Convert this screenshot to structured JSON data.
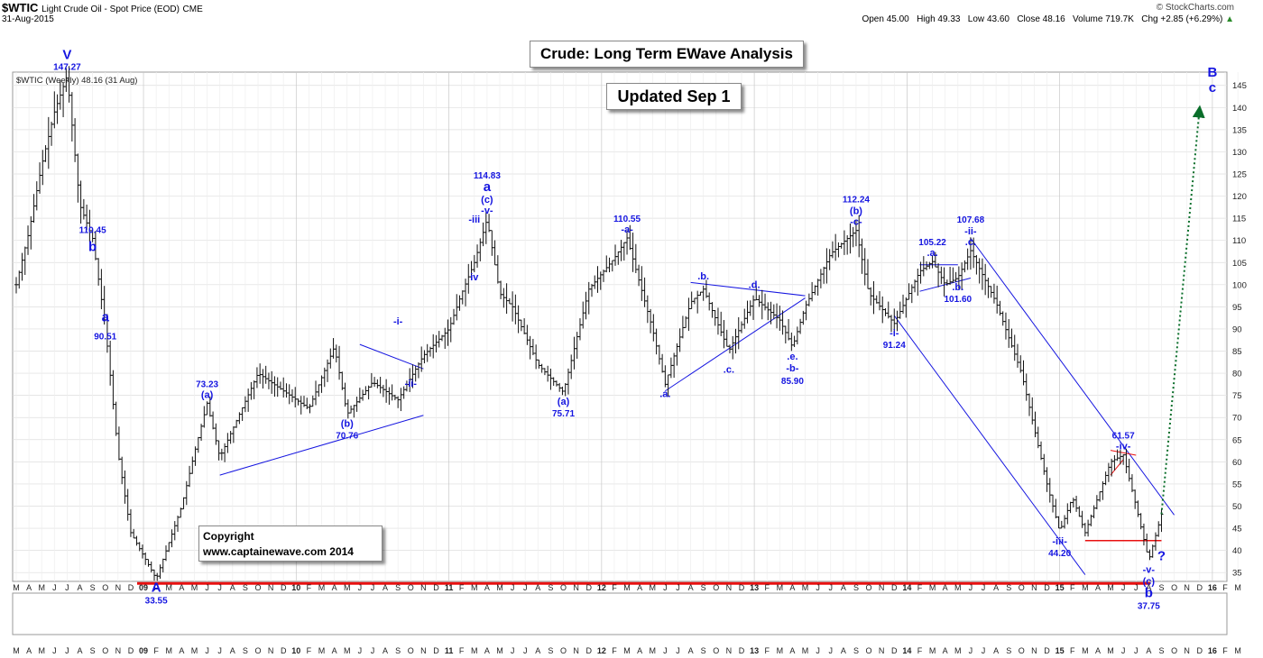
{
  "header": {
    "ticker": "$WTIC",
    "name": "Light Crude Oil - Spot Price (EOD)",
    "exchange": "CME",
    "date": "31-Aug-2015",
    "brand": "© StockCharts.com",
    "stats": [
      {
        "label": "Open",
        "value": "45.00"
      },
      {
        "label": "High",
        "value": "49.33"
      },
      {
        "label": "Low",
        "value": "43.60"
      },
      {
        "label": "Close",
        "value": "48.16"
      },
      {
        "label": "Volume",
        "value": "719.7K"
      }
    ],
    "chg_label": "Chg",
    "chg_value": "+2.85 (+6.29%)",
    "chg_arrow": "▲",
    "legend": "$WTIC (Weekly) 48.16 (31 Aug)"
  },
  "title_box": "Crude: Long Term EWave Analysis",
  "updated_box": "Updated Sep 1",
  "copyright": {
    "line1": "Copyright",
    "line2": "www.captainewave.com 2014"
  },
  "colors": {
    "wave": "#1515e0",
    "support": "#e81010",
    "projection": "#0a6e2a",
    "bars": "#111111",
    "grid": "#dddddd"
  },
  "chart_data": {
    "type": "ohlc",
    "title": "Crude: Long Term EWave Analysis",
    "period": "weekly",
    "ylim": [
      33,
      148
    ],
    "y_ticks": [
      35,
      40,
      45,
      50,
      55,
      60,
      65,
      70,
      75,
      80,
      85,
      90,
      95,
      100,
      105,
      110,
      115,
      120,
      125,
      130,
      135,
      140,
      145
    ],
    "x_start": "2008-03",
    "x_months": [
      "M",
      "A",
      "M",
      "J",
      "J",
      "A",
      "S",
      "O",
      "N",
      "D",
      "09",
      "F",
      "M",
      "A",
      "M",
      "J",
      "J",
      "A",
      "S",
      "O",
      "N",
      "D",
      "10",
      "F",
      "M",
      "A",
      "M",
      "J",
      "J",
      "A",
      "S",
      "O",
      "N",
      "D",
      "11",
      "F",
      "M",
      "A",
      "M",
      "J",
      "J",
      "A",
      "S",
      "O",
      "N",
      "D",
      "12",
      "F",
      "M",
      "A",
      "M",
      "J",
      "J",
      "A",
      "S",
      "O",
      "N",
      "D",
      "13",
      "F",
      "M",
      "A",
      "M",
      "J",
      "J",
      "A",
      "S",
      "O",
      "N",
      "D",
      "14",
      "F",
      "M",
      "A",
      "M",
      "J",
      "J",
      "A",
      "S",
      "O",
      "N",
      "D",
      "15",
      "F",
      "M",
      "A",
      "M",
      "J",
      "J",
      "A",
      "S",
      "O",
      "N",
      "D",
      "16",
      "F",
      "M"
    ],
    "price_path": [
      [
        "2008-03",
        100
      ],
      [
        "2008-04",
        112
      ],
      [
        "2008-05",
        127
      ],
      [
        "2008-06",
        139
      ],
      [
        "2008-07",
        147.27
      ],
      [
        "2008-08",
        118
      ],
      [
        "2008-09",
        110.45
      ],
      [
        "2008-10",
        90.51
      ],
      [
        "2008-11",
        62
      ],
      [
        "2008-12",
        44
      ],
      [
        "2009-02",
        33.55
      ],
      [
        "2009-04",
        50
      ],
      [
        "2009-05",
        62
      ],
      [
        "2009-06",
        73.23
      ],
      [
        "2009-07",
        61
      ],
      [
        "2009-10",
        80
      ],
      [
        "2010-02",
        72
      ],
      [
        "2010-04",
        86
      ],
      [
        "2010-05",
        70.76
      ],
      [
        "2010-07",
        78
      ],
      [
        "2010-09",
        74
      ],
      [
        "2010-11",
        84
      ],
      [
        "2011-01",
        90
      ],
      [
        "2011-02",
        98
      ],
      [
        "2011-03",
        105
      ],
      [
        "2011-04",
        114.83
      ],
      [
        "2011-05",
        98
      ],
      [
        "2011-06",
        95
      ],
      [
        "2011-08",
        82
      ],
      [
        "2011-10",
        75.71
      ],
      [
        "2011-12",
        99
      ],
      [
        "2012-02",
        106
      ],
      [
        "2012-03",
        110.55
      ],
      [
        "2012-05",
        90
      ],
      [
        "2012-06",
        77.5
      ],
      [
        "2012-08",
        96
      ],
      [
        "2012-09",
        99
      ],
      [
        "2012-11",
        85
      ],
      [
        "2012-12",
        91
      ],
      [
        "2013-01",
        97
      ],
      [
        "2013-03",
        92
      ],
      [
        "2013-04",
        85.9
      ],
      [
        "2013-05",
        95
      ],
      [
        "2013-07",
        107
      ],
      [
        "2013-09",
        112.24
      ],
      [
        "2013-10",
        98
      ],
      [
        "2013-12",
        91.24
      ],
      [
        "2014-02",
        103
      ],
      [
        "2014-03",
        105.22
      ],
      [
        "2014-04",
        100
      ],
      [
        "2014-05",
        101.6
      ],
      [
        "2014-06",
        107.68
      ],
      [
        "2014-08",
        96
      ],
      [
        "2014-10",
        80
      ],
      [
        "2014-12",
        55
      ],
      [
        "2015-01",
        44.2
      ],
      [
        "2015-02",
        52
      ],
      [
        "2015-03",
        44
      ],
      [
        "2015-05",
        60
      ],
      [
        "2015-06",
        61.57
      ],
      [
        "2015-07",
        50
      ],
      [
        "2015-08",
        37.75
      ],
      [
        "2015-08-31",
        48.16
      ]
    ],
    "support_line": 33.55,
    "projection": {
      "from": [
        "2015-08-31",
        48.16
      ],
      "to": [
        "2015-12",
        140
      ],
      "style": "dotted-arrow"
    },
    "annotations": [
      {
        "text": "147.27",
        "date": "2008-07",
        "price": 147.27,
        "pos": "above"
      },
      {
        "text": "V",
        "date": "2008-07",
        "price": 147.27,
        "pos": "above2"
      },
      {
        "text": "110.45",
        "date": "2008-09",
        "price": 110.45,
        "pos": "above"
      },
      {
        "text": "b",
        "date": "2008-09",
        "price": 110.45,
        "pos": "below"
      },
      {
        "text": "a",
        "date": "2008-10",
        "price": 90.51,
        "pos": "above"
      },
      {
        "text": "90.51",
        "date": "2008-10",
        "price": 90.51,
        "pos": "below"
      },
      {
        "text": "A",
        "date": "2009-02",
        "price": 33.55,
        "pos": "below"
      },
      {
        "text": "33.55",
        "date": "2009-02",
        "price": 33.55,
        "pos": "below2"
      },
      {
        "text": "73.23",
        "date": "2009-06",
        "price": 73.23,
        "pos": "above2"
      },
      {
        "text": "(a)",
        "date": "2009-06",
        "price": 73.23,
        "pos": "above"
      },
      {
        "text": "(b)",
        "date": "2010-05",
        "price": 70.76,
        "pos": "below"
      },
      {
        "text": "70.76",
        "date": "2010-05",
        "price": 70.76,
        "pos": "below2"
      },
      {
        "text": "-i-",
        "date": "2010-09",
        "price": 91,
        "pos": "at"
      },
      {
        "text": "-ii-",
        "date": "2010-10",
        "price": 77,
        "pos": "at"
      },
      {
        "text": "114.83",
        "date": "2011-04",
        "price": 114.83,
        "pos": "above4"
      },
      {
        "text": "a",
        "date": "2011-04",
        "price": 114.83,
        "pos": "above3"
      },
      {
        "text": "(c)",
        "date": "2011-04",
        "price": 114.83,
        "pos": "above2"
      },
      {
        "text": "-v-",
        "date": "2011-04",
        "price": 114.83,
        "pos": "above"
      },
      {
        "text": "-iii",
        "date": "2011-03",
        "price": 114,
        "pos": "at"
      },
      {
        "text": "iv",
        "date": "2011-03",
        "price": 101,
        "pos": "at"
      },
      {
        "text": "(a)",
        "date": "2011-10",
        "price": 75.71,
        "pos": "below"
      },
      {
        "text": "75.71",
        "date": "2011-10",
        "price": 75.71,
        "pos": "below2"
      },
      {
        "text": "110.55",
        "date": "2012-03",
        "price": 110.55,
        "pos": "above2"
      },
      {
        "text": "-a-",
        "date": "2012-03",
        "price": 110.55,
        "pos": "above"
      },
      {
        "text": ".a.",
        "date": "2012-06",
        "price": 77.5,
        "pos": "below"
      },
      {
        "text": ".b.",
        "date": "2012-09",
        "price": 100,
        "pos": "above"
      },
      {
        "text": ".c.",
        "date": "2012-11",
        "price": 83,
        "pos": "below"
      },
      {
        "text": ".d.",
        "date": "2013-01",
        "price": 98,
        "pos": "above"
      },
      {
        "text": ".e.",
        "date": "2013-04",
        "price": 85.9,
        "pos": "below"
      },
      {
        "text": "-b-",
        "date": "2013-04",
        "price": 85.9,
        "pos": "below2"
      },
      {
        "text": "85.90",
        "date": "2013-04",
        "price": 85.9,
        "pos": "below3"
      },
      {
        "text": "112.24",
        "date": "2013-09",
        "price": 112.24,
        "pos": "above3"
      },
      {
        "text": "(b)",
        "date": "2013-09",
        "price": 112.24,
        "pos": "above2"
      },
      {
        "text": "-c-",
        "date": "2013-09",
        "price": 112.24,
        "pos": "above"
      },
      {
        "text": "-i-",
        "date": "2013-12",
        "price": 91.24,
        "pos": "below"
      },
      {
        "text": "91.24",
        "date": "2013-12",
        "price": 91.24,
        "pos": "below2"
      },
      {
        "text": "105.22",
        "date": "2014-03",
        "price": 105.22,
        "pos": "above2"
      },
      {
        "text": ".a.",
        "date": "2014-03",
        "price": 105.22,
        "pos": "above"
      },
      {
        "text": ".b.",
        "date": "2014-05",
        "price": 101.6,
        "pos": "below"
      },
      {
        "text": "101.60",
        "date": "2014-05",
        "price": 101.6,
        "pos": "below2"
      },
      {
        "text": "107.68",
        "date": "2014-06",
        "price": 107.68,
        "pos": "above3"
      },
      {
        "text": "-ii-",
        "date": "2014-06",
        "price": 107.68,
        "pos": "above2"
      },
      {
        "text": ".c.",
        "date": "2014-06",
        "price": 107.68,
        "pos": "above"
      },
      {
        "text": "-iii-",
        "date": "2015-01",
        "price": 44.2,
        "pos": "below"
      },
      {
        "text": "44.20",
        "date": "2015-01",
        "price": 44.2,
        "pos": "below2"
      },
      {
        "text": "61.57",
        "date": "2015-06",
        "price": 61.57,
        "pos": "above2"
      },
      {
        "text": "-iv-",
        "date": "2015-06",
        "price": 61.57,
        "pos": "above"
      },
      {
        "text": "-v-",
        "date": "2015-08",
        "price": 37.75,
        "pos": "below"
      },
      {
        "text": "(c)",
        "date": "2015-08",
        "price": 37.75,
        "pos": "below2"
      },
      {
        "text": "b",
        "date": "2015-08",
        "price": 37.75,
        "pos": "below3"
      },
      {
        "text": "37.75",
        "date": "2015-08",
        "price": 37.75,
        "pos": "below4"
      },
      {
        "text": "?",
        "date": "2015-09",
        "price": 37.75,
        "pos": "at"
      },
      {
        "text": "B",
        "date": "2016-01",
        "price": 147,
        "pos": "at"
      },
      {
        "text": "c",
        "date": "2016-01",
        "price": 143.5,
        "pos": "at"
      }
    ]
  }
}
